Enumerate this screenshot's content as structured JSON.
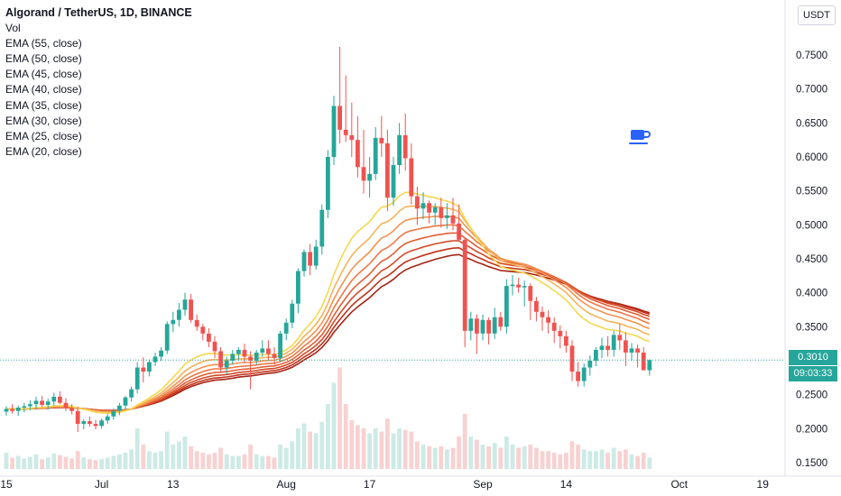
{
  "legend": {
    "title": "Algorand / TetherUS, 1D, BINANCE",
    "items": [
      "Vol",
      "EMA (55, close)",
      "EMA (50, close)",
      "EMA (45, close)",
      "EMA (40, close)",
      "EMA (35, close)",
      "EMA (30, close)",
      "EMA (25, close)",
      "EMA (20, close)"
    ]
  },
  "currency_label": "USDT",
  "last_price_label": "0.3010",
  "countdown_label": "09:03:33",
  "colors": {
    "up": "#26a69a",
    "down": "#ef5350",
    "vol_up": "#cdeae6",
    "vol_down": "#f8d1d1"
  },
  "chart_data": {
    "type": "candlestick",
    "title": "Algorand / TetherUS, 1D, BINANCE",
    "ylim": [
      0.14,
      0.78
    ],
    "y_ticks": [
      0.15,
      0.2,
      0.25,
      0.3,
      0.35,
      0.4,
      0.45,
      0.5,
      0.55,
      0.6,
      0.65,
      0.7,
      0.75
    ],
    "y_tick_labels": [
      "0.1500",
      "0.2000",
      "0.2500",
      "0.3000",
      "0.3500",
      "0.4000",
      "0.4500",
      "0.5000",
      "0.5500",
      "0.6000",
      "0.6500",
      "0.7000",
      "0.7500"
    ],
    "x_tick_labels": [
      "15",
      "Jul",
      "13",
      "Aug",
      "17",
      "Sep",
      "14",
      "Oct",
      "19"
    ],
    "x_tick_bars": [
      0,
      16,
      28,
      47,
      61,
      80,
      94,
      113,
      127
    ],
    "last_price": 0.301,
    "ohlc": [
      [
        0.225,
        0.233,
        0.219,
        0.229
      ],
      [
        0.229,
        0.236,
        0.222,
        0.226
      ],
      [
        0.226,
        0.234,
        0.219,
        0.231
      ],
      [
        0.231,
        0.238,
        0.224,
        0.233
      ],
      [
        0.233,
        0.242,
        0.227,
        0.236
      ],
      [
        0.236,
        0.247,
        0.229,
        0.241
      ],
      [
        0.241,
        0.248,
        0.232,
        0.235
      ],
      [
        0.235,
        0.244,
        0.228,
        0.24
      ],
      [
        0.24,
        0.253,
        0.234,
        0.247
      ],
      [
        0.247,
        0.255,
        0.236,
        0.238
      ],
      [
        0.238,
        0.245,
        0.226,
        0.23
      ],
      [
        0.23,
        0.236,
        0.221,
        0.226
      ],
      [
        0.226,
        0.232,
        0.195,
        0.207
      ],
      [
        0.207,
        0.214,
        0.199,
        0.211
      ],
      [
        0.211,
        0.218,
        0.203,
        0.207
      ],
      [
        0.207,
        0.213,
        0.199,
        0.204
      ],
      [
        0.204,
        0.215,
        0.2,
        0.212
      ],
      [
        0.212,
        0.222,
        0.207,
        0.218
      ],
      [
        0.218,
        0.23,
        0.213,
        0.226
      ],
      [
        0.226,
        0.238,
        0.22,
        0.234
      ],
      [
        0.234,
        0.248,
        0.228,
        0.246
      ],
      [
        0.246,
        0.262,
        0.24,
        0.258
      ],
      [
        0.258,
        0.298,
        0.252,
        0.29
      ],
      [
        0.29,
        0.305,
        0.268,
        0.284
      ],
      [
        0.284,
        0.302,
        0.277,
        0.298
      ],
      [
        0.298,
        0.312,
        0.292,
        0.306
      ],
      [
        0.306,
        0.32,
        0.3,
        0.315
      ],
      [
        0.315,
        0.358,
        0.31,
        0.354
      ],
      [
        0.354,
        0.372,
        0.342,
        0.36
      ],
      [
        0.36,
        0.385,
        0.35,
        0.375
      ],
      [
        0.375,
        0.4,
        0.366,
        0.39
      ],
      [
        0.39,
        0.398,
        0.356,
        0.36
      ],
      [
        0.36,
        0.368,
        0.344,
        0.35
      ],
      [
        0.35,
        0.354,
        0.33,
        0.34
      ],
      [
        0.34,
        0.348,
        0.32,
        0.328
      ],
      [
        0.328,
        0.336,
        0.304,
        0.314
      ],
      [
        0.314,
        0.32,
        0.282,
        0.29
      ],
      [
        0.29,
        0.306,
        0.28,
        0.3
      ],
      [
        0.3,
        0.316,
        0.294,
        0.31
      ],
      [
        0.31,
        0.32,
        0.3,
        0.316
      ],
      [
        0.316,
        0.325,
        0.296,
        0.306
      ],
      [
        0.306,
        0.314,
        0.258,
        0.3
      ],
      [
        0.3,
        0.316,
        0.294,
        0.312
      ],
      [
        0.312,
        0.33,
        0.306,
        0.318
      ],
      [
        0.318,
        0.33,
        0.3,
        0.31
      ],
      [
        0.31,
        0.32,
        0.294,
        0.304
      ],
      [
        0.304,
        0.344,
        0.298,
        0.34
      ],
      [
        0.34,
        0.362,
        0.33,
        0.356
      ],
      [
        0.356,
        0.39,
        0.348,
        0.384
      ],
      [
        0.384,
        0.436,
        0.37,
        0.432
      ],
      [
        0.432,
        0.464,
        0.424,
        0.46
      ],
      [
        0.46,
        0.472,
        0.426,
        0.44
      ],
      [
        0.44,
        0.478,
        0.434,
        0.468
      ],
      [
        0.468,
        0.53,
        0.456,
        0.522
      ],
      [
        0.522,
        0.61,
        0.51,
        0.6
      ],
      [
        0.6,
        0.69,
        0.588,
        0.675
      ],
      [
        0.675,
        0.762,
        0.62,
        0.64
      ],
      [
        0.64,
        0.72,
        0.622,
        0.632
      ],
      [
        0.632,
        0.68,
        0.6,
        0.625
      ],
      [
        0.625,
        0.66,
        0.57,
        0.585
      ],
      [
        0.585,
        0.64,
        0.546,
        0.565
      ],
      [
        0.565,
        0.6,
        0.54,
        0.575
      ],
      [
        0.575,
        0.644,
        0.566,
        0.628
      ],
      [
        0.628,
        0.66,
        0.6,
        0.62
      ],
      [
        0.62,
        0.64,
        0.52,
        0.54
      ],
      [
        0.54,
        0.6,
        0.528,
        0.588
      ],
      [
        0.588,
        0.65,
        0.575,
        0.632
      ],
      [
        0.632,
        0.664,
        0.58,
        0.598
      ],
      [
        0.598,
        0.62,
        0.53,
        0.542
      ],
      [
        0.542,
        0.556,
        0.5,
        0.524
      ],
      [
        0.524,
        0.548,
        0.508,
        0.532
      ],
      [
        0.532,
        0.536,
        0.502,
        0.518
      ],
      [
        0.518,
        0.532,
        0.5,
        0.526
      ],
      [
        0.526,
        0.54,
        0.496,
        0.51
      ],
      [
        0.51,
        0.532,
        0.494,
        0.514
      ],
      [
        0.514,
        0.54,
        0.492,
        0.502
      ],
      [
        0.502,
        0.53,
        0.484,
        0.478
      ],
      [
        0.478,
        0.482,
        0.32,
        0.344
      ],
      [
        0.344,
        0.372,
        0.33,
        0.362
      ],
      [
        0.362,
        0.368,
        0.31,
        0.34
      ],
      [
        0.34,
        0.368,
        0.33,
        0.36
      ],
      [
        0.36,
        0.364,
        0.324,
        0.34
      ],
      [
        0.34,
        0.378,
        0.332,
        0.364
      ],
      [
        0.364,
        0.372,
        0.344,
        0.35
      ],
      [
        0.35,
        0.42,
        0.34,
        0.41
      ],
      [
        0.41,
        0.426,
        0.396,
        0.412
      ],
      [
        0.412,
        0.422,
        0.4,
        0.408
      ],
      [
        0.408,
        0.418,
        0.38,
        0.41
      ],
      [
        0.41,
        0.414,
        0.36,
        0.388
      ],
      [
        0.388,
        0.394,
        0.358,
        0.372
      ],
      [
        0.372,
        0.38,
        0.344,
        0.364
      ],
      [
        0.364,
        0.374,
        0.34,
        0.356
      ],
      [
        0.356,
        0.364,
        0.326,
        0.344
      ],
      [
        0.344,
        0.352,
        0.318,
        0.336
      ],
      [
        0.336,
        0.344,
        0.312,
        0.322
      ],
      [
        0.322,
        0.33,
        0.27,
        0.284
      ],
      [
        0.284,
        0.298,
        0.262,
        0.27
      ],
      [
        0.27,
        0.296,
        0.262,
        0.29
      ],
      [
        0.29,
        0.308,
        0.278,
        0.3
      ],
      [
        0.3,
        0.32,
        0.292,
        0.316
      ],
      [
        0.316,
        0.334,
        0.304,
        0.322
      ],
      [
        0.322,
        0.336,
        0.306,
        0.316
      ],
      [
        0.316,
        0.344,
        0.306,
        0.338
      ],
      [
        0.338,
        0.354,
        0.316,
        0.33
      ],
      [
        0.33,
        0.342,
        0.292,
        0.312
      ],
      [
        0.312,
        0.326,
        0.3,
        0.318
      ],
      [
        0.318,
        0.324,
        0.29,
        0.312
      ],
      [
        0.312,
        0.32,
        0.288,
        0.286
      ],
      [
        0.286,
        0.302,
        0.278,
        0.301
      ]
    ],
    "volume": [
      0.02,
      0.014,
      0.016,
      0.013,
      0.015,
      0.018,
      0.012,
      0.014,
      0.019,
      0.017,
      0.015,
      0.013,
      0.022,
      0.014,
      0.012,
      0.011,
      0.012,
      0.014,
      0.016,
      0.018,
      0.02,
      0.024,
      0.05,
      0.03,
      0.022,
      0.02,
      0.022,
      0.046,
      0.03,
      0.034,
      0.04,
      0.028,
      0.022,
      0.02,
      0.018,
      0.02,
      0.026,
      0.018,
      0.016,
      0.016,
      0.018,
      0.03,
      0.018,
      0.016,
      0.016,
      0.014,
      0.03,
      0.026,
      0.034,
      0.05,
      0.056,
      0.046,
      0.044,
      0.058,
      0.08,
      0.106,
      0.125,
      0.08,
      0.06,
      0.054,
      0.05,
      0.044,
      0.05,
      0.046,
      0.062,
      0.044,
      0.05,
      0.048,
      0.046,
      0.034,
      0.03,
      0.028,
      0.026,
      0.028,
      0.024,
      0.026,
      0.04,
      0.068,
      0.04,
      0.036,
      0.03,
      0.028,
      0.032,
      0.026,
      0.04,
      0.03,
      0.026,
      0.028,
      0.03,
      0.026,
      0.022,
      0.022,
      0.02,
      0.018,
      0.02,
      0.034,
      0.03,
      0.024,
      0.022,
      0.022,
      0.024,
      0.02,
      0.026,
      0.022,
      0.024,
      0.018,
      0.016,
      0.02,
      0.014
    ],
    "ema_colors": [
      "#a52414",
      "#c0331d",
      "#d44a28",
      "#e26036",
      "#ee7845",
      "#f4924f",
      "#f7b259",
      "#f4d84e"
    ],
    "ema_periods": [
      55,
      50,
      45,
      40,
      35,
      30,
      25,
      20
    ],
    "grid": false,
    "legend_position": "top-left"
  }
}
